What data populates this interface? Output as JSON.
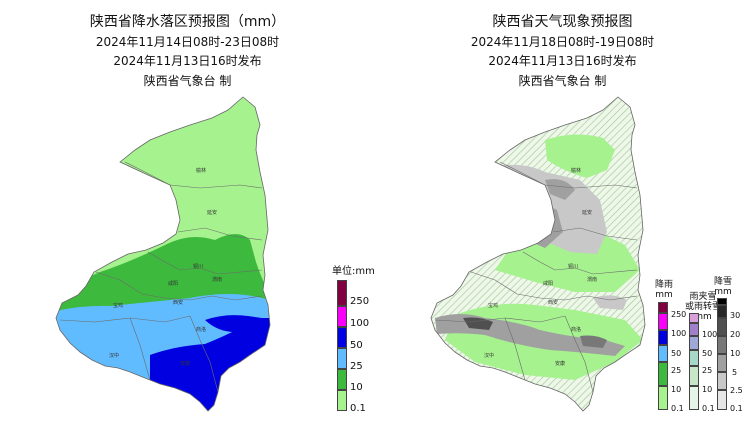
{
  "left": {
    "title": "陕西省降水落区预报图（mm）",
    "period": "2024年11月14日08时-23日08时",
    "issued": "2024年11月13日16时发布",
    "issuer": "陕西省气象台  制",
    "legend": {
      "unit_label": "单位:mm",
      "levels": [
        {
          "label": "0.1",
          "color": "#a6f28f"
        },
        {
          "label": "10",
          "color": "#3dba3d"
        },
        {
          "label": "25",
          "color": "#61bbff"
        },
        {
          "label": "50",
          "color": "#0000e1"
        },
        {
          "label": "100",
          "color": "#fa00fa"
        },
        {
          "label": "250",
          "color": "#800040"
        }
      ]
    }
  },
  "right": {
    "title": "陕西省天气现象预报图",
    "period": "2024年11月18日08时-19日08时",
    "issued": "2024年11月13日16时发布",
    "issuer": "陕西省气象台  制",
    "legend_rain": {
      "heading": [
        "降雨",
        "mm"
      ],
      "levels": [
        {
          "label": "0.1",
          "color": "#a6f28f"
        },
        {
          "label": "10",
          "color": "#3dba3d"
        },
        {
          "label": "25",
          "color": "#61bbff"
        },
        {
          "label": "50",
          "color": "#0000e1"
        },
        {
          "label": "100",
          "color": "#fa00fa"
        },
        {
          "label": "250",
          "color": "#800040"
        }
      ]
    },
    "legend_sleet": {
      "heading": [
        "雨夹雪",
        "或雨转雪",
        "mm"
      ],
      "levels": [
        {
          "label": "0.1",
          "color": "#e6f5e6"
        },
        {
          "label": "10",
          "color": "#c8e6c8"
        },
        {
          "label": "25",
          "color": "#a8d8c8"
        },
        {
          "label": "50",
          "color": "#a0a8d8"
        },
        {
          "label": "100",
          "color": "#a080c8"
        },
        {
          "label": "",
          "color": "#d8a0d8"
        }
      ]
    },
    "legend_snow": {
      "heading": [
        "降雪",
        "mm"
      ],
      "levels": [
        {
          "label": "0.1",
          "color": "#e6e6e6"
        },
        {
          "label": "2.5",
          "color": "#c8c8c8"
        },
        {
          "label": "5",
          "color": "#a0a0a0"
        },
        {
          "label": "10",
          "color": "#787878"
        },
        {
          "label": "20",
          "color": "#505050"
        },
        {
          "label": "30",
          "color": "#282828"
        },
        {
          "label": "",
          "color": "#000000"
        }
      ]
    }
  },
  "cities": [
    "榆林",
    "延安",
    "铜川",
    "渭南",
    "咸阳",
    "宝鸡",
    "西安",
    "商洛",
    "汉中",
    "安康"
  ]
}
